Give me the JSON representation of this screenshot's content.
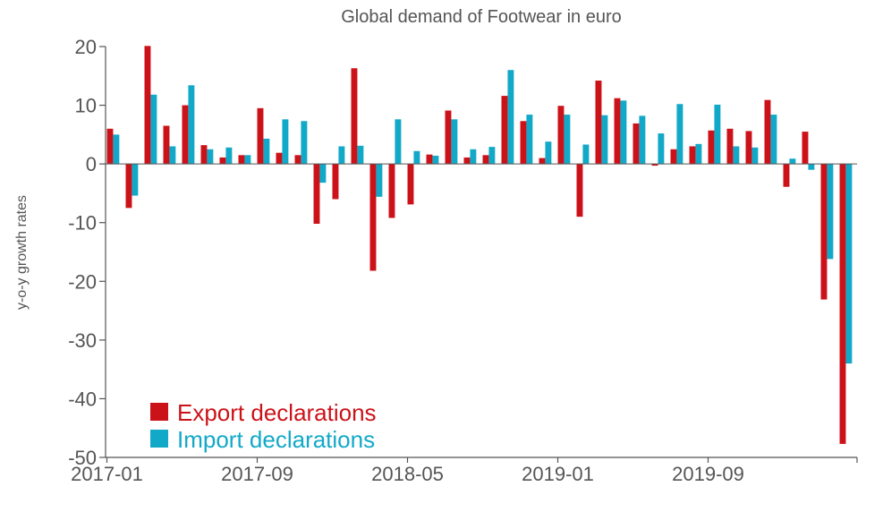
{
  "chart_data": {
    "type": "bar",
    "title": "Global demand of Footwear in euro",
    "xlabel": "",
    "ylabel": "y-o-y growth rates",
    "ylim": [
      -50,
      20
    ],
    "yticks": [
      20,
      10,
      0,
      -10,
      -20,
      -30,
      -40,
      -50
    ],
    "x_tick_labels": [
      "2017-01",
      "2017-09",
      "2018-05",
      "2019-01",
      "2019-09"
    ],
    "x_tick_indices": [
      0,
      8,
      16,
      24,
      32
    ],
    "categories": [
      "2017-01",
      "2017-02",
      "2017-03",
      "2017-04",
      "2017-05",
      "2017-06",
      "2017-07",
      "2017-08",
      "2017-09",
      "2017-10",
      "2017-11",
      "2017-12",
      "2018-01",
      "2018-02",
      "2018-03",
      "2018-04",
      "2018-05",
      "2018-06",
      "2018-07",
      "2018-08",
      "2018-09",
      "2018-10",
      "2018-11",
      "2018-12",
      "2019-01",
      "2019-02",
      "2019-03",
      "2019-04",
      "2019-05",
      "2019-06",
      "2019-07",
      "2019-08",
      "2019-09",
      "2019-10",
      "2019-11",
      "2019-12",
      "2020-01",
      "2020-02",
      "2020-03",
      "2020-04"
    ],
    "legend_position": "bottom-left",
    "series": [
      {
        "name": "Export declarations",
        "color": "#cc1219",
        "values": [
          6.0,
          -7.5,
          20.1,
          6.5,
          10.0,
          3.2,
          1.1,
          1.5,
          9.5,
          1.9,
          1.5,
          -10.2,
          -6.0,
          16.3,
          -18.2,
          -9.2,
          -6.9,
          1.6,
          9.1,
          1.1,
          1.5,
          11.6,
          7.3,
          1.0,
          9.9,
          -9.0,
          14.2,
          11.2,
          6.9,
          -0.3,
          2.5,
          3.0,
          5.7,
          6.0,
          5.6,
          10.9,
          -3.9,
          5.5,
          -23.1,
          -47.7
        ]
      },
      {
        "name": "Import declarations",
        "color": "#12a9c8",
        "values": [
          5.0,
          -5.4,
          11.8,
          3.0,
          13.4,
          2.5,
          2.8,
          1.5,
          4.3,
          7.6,
          7.3,
          -3.2,
          3.0,
          3.1,
          -5.6,
          7.6,
          2.2,
          1.4,
          7.6,
          2.5,
          2.9,
          16.0,
          8.4,
          3.8,
          8.4,
          3.3,
          8.3,
          10.8,
          8.2,
          5.2,
          10.2,
          3.4,
          10.1,
          3.0,
          2.8,
          8.4,
          0.9,
          -1.0,
          -16.2,
          -34.0
        ]
      }
    ]
  }
}
